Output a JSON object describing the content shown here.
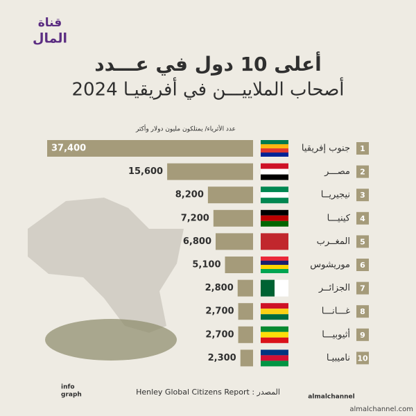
{
  "logo": {
    "line1": "قناة",
    "line2": "المال"
  },
  "title": {
    "line1": "أعلى 10 دول في عـــدد",
    "line2": "أصحاب الملاييـــن في أفريقيـا 2024"
  },
  "chart_data": {
    "type": "bar",
    "orientation": "horizontal",
    "axis_label": "عدد الأثرياء/ يمتلكون مليون دولار وأكثر",
    "ranks": [
      1,
      2,
      3,
      4,
      5,
      6,
      7,
      8,
      9,
      10
    ],
    "categories": [
      "جنوب إفريقيا",
      "مصـــر",
      "نيجيريــا",
      "كينيـــا",
      "المغــرب",
      "موريشوس",
      "الجزائــر",
      "غـــانـــا",
      "أثيوبيـــا",
      "ناميبيـا"
    ],
    "values": [
      37400,
      15600,
      8200,
      7200,
      6800,
      5100,
      2800,
      2700,
      2700,
      2300
    ],
    "value_labels": [
      "37,400",
      "15,600",
      "8,200",
      "7,200",
      "6,800",
      "5,100",
      "2,800",
      "2,700",
      "2,700",
      "2,300"
    ],
    "color": "#a59b7a"
  },
  "footer": {
    "source": "Henley Global Citizens Report : المصدر",
    "handle": "almalchannel",
    "brand_line1": "info",
    "brand_line2": "graph",
    "watermark": "almalchannel.com"
  }
}
